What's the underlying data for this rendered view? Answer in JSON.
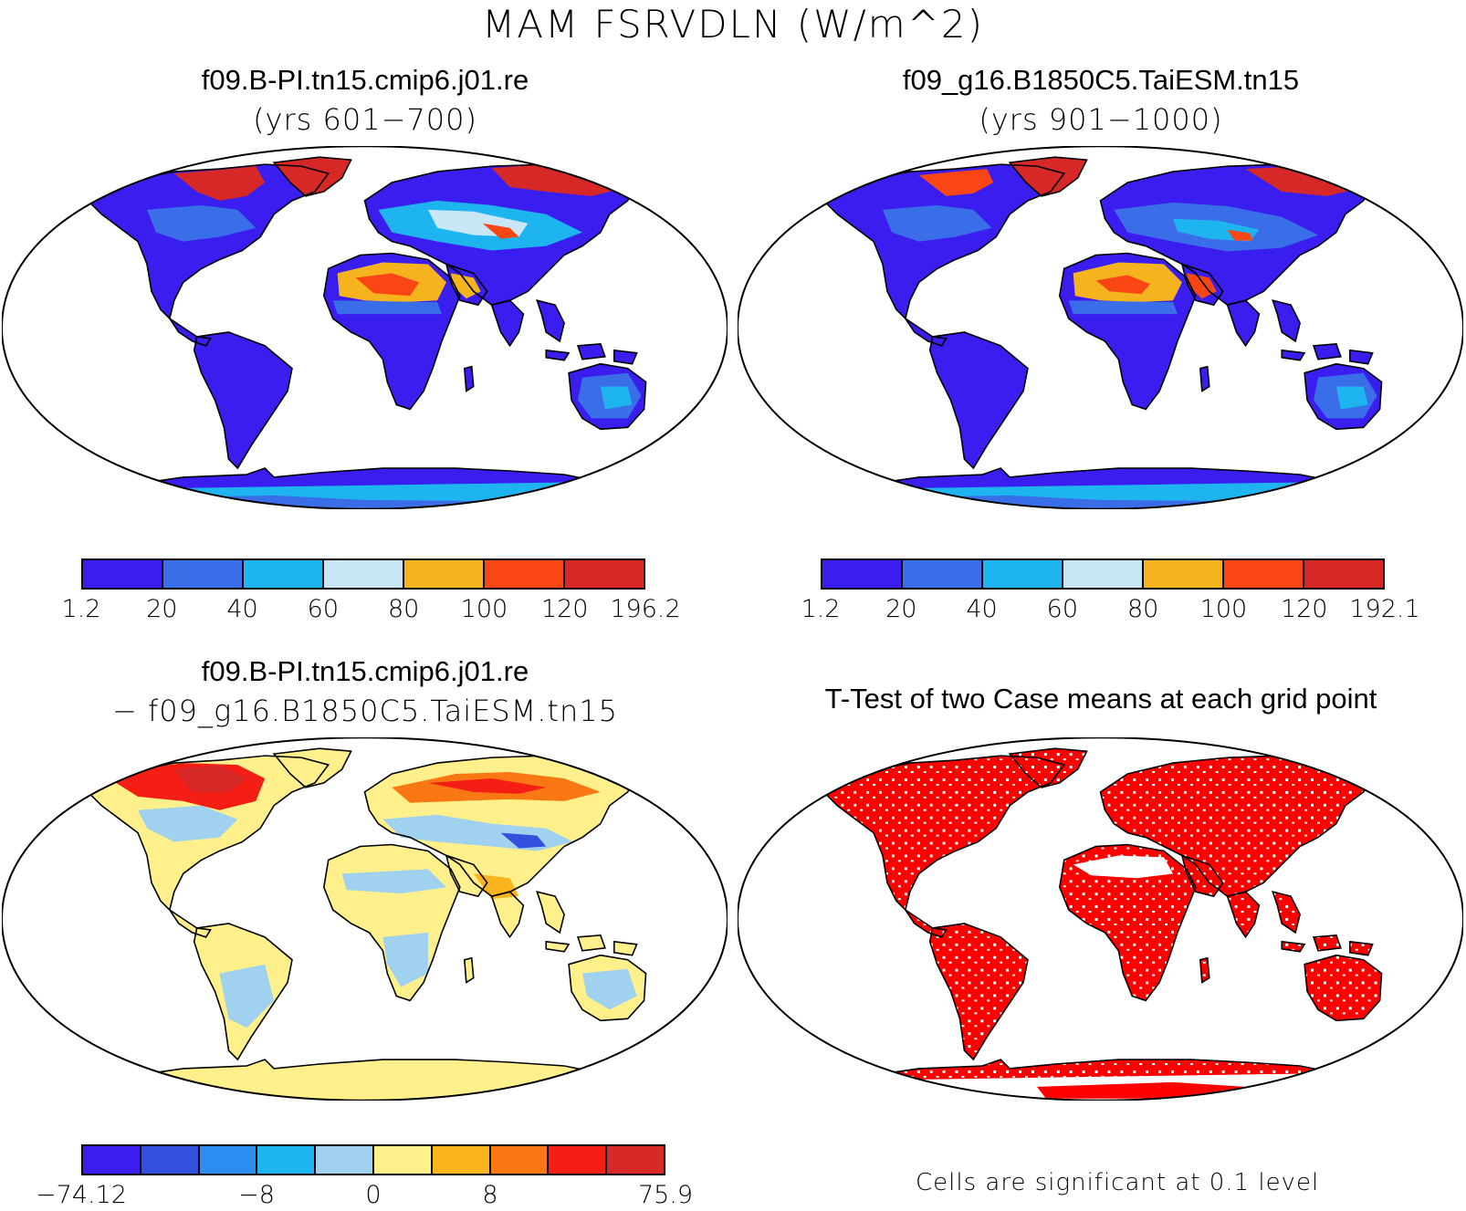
{
  "title": "MAM FSRVDLN (W/m^2)",
  "panels": {
    "top_left": {
      "title": "f09.B-PI.tn15.cmip6.j01.re",
      "subtitle": "(yrs 601−700)"
    },
    "top_right": {
      "title": "f09_g16.B1850C5.TaiESM.tn15",
      "subtitle": "(yrs 901−1000)"
    },
    "bottom_left": {
      "title": "f09.B-PI.tn15.cmip6.j01.re",
      "subtitle": "− f09_g16.B1850C5.TaiESM.tn15"
    },
    "bottom_right": {
      "title": "T-Test of two Case means at each grid point",
      "note": "Cells are significant at 0.1 level"
    }
  },
  "colorbars": {
    "case1": {
      "labels": [
        "1.2",
        "20",
        "40",
        "60",
        "80",
        "100",
        "120",
        "196.2"
      ],
      "colors": [
        "#3a1ef0",
        "#3a6ee8",
        "#1eb4f0",
        "#c8e6f5",
        "#f5b41e",
        "#fa4614",
        "#d72828"
      ]
    },
    "case2": {
      "labels": [
        "1.2",
        "20",
        "40",
        "60",
        "80",
        "100",
        "120",
        "192.1"
      ],
      "colors": [
        "#3a1ef0",
        "#3a6ee8",
        "#1eb4f0",
        "#c8e6f5",
        "#f5b41e",
        "#fa4614",
        "#d72828"
      ]
    },
    "diff": {
      "labels": [
        "−74.12",
        "−8",
        "0",
        "8",
        "75.9"
      ],
      "colors": [
        "#3a1ef0",
        "#3250dc",
        "#2d8cf0",
        "#1eb4f0",
        "#a0d2f0",
        "#fff08c",
        "#fab41e",
        "#fa7814",
        "#f51e14",
        "#d72828"
      ]
    }
  },
  "colors": {
    "significant": "#ff0000"
  }
}
